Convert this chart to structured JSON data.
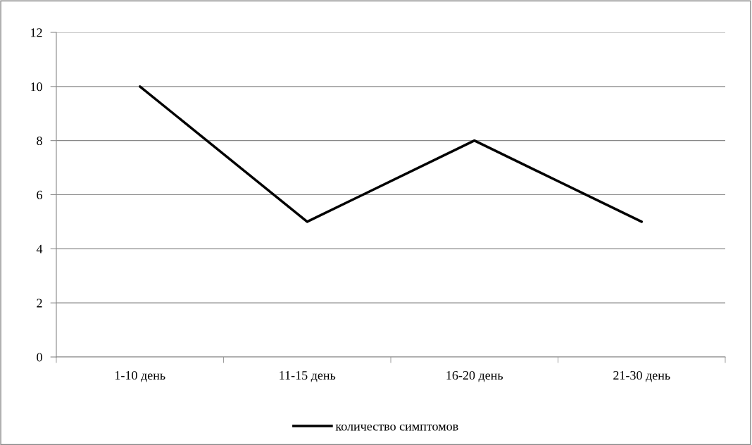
{
  "chart_data": {
    "type": "line",
    "categories": [
      "1-10 день",
      "11-15 день",
      "16-20 день",
      "21-30 день"
    ],
    "series": [
      {
        "name": "количество симптомов",
        "color": "#000000",
        "values": [
          10,
          5,
          8,
          5
        ]
      }
    ],
    "ylim": [
      0,
      12
    ],
    "yticks": [
      0,
      2,
      4,
      6,
      8,
      10,
      12
    ],
    "grid": "y",
    "legend": "bottom",
    "marker": "none",
    "line_style": "solid"
  }
}
